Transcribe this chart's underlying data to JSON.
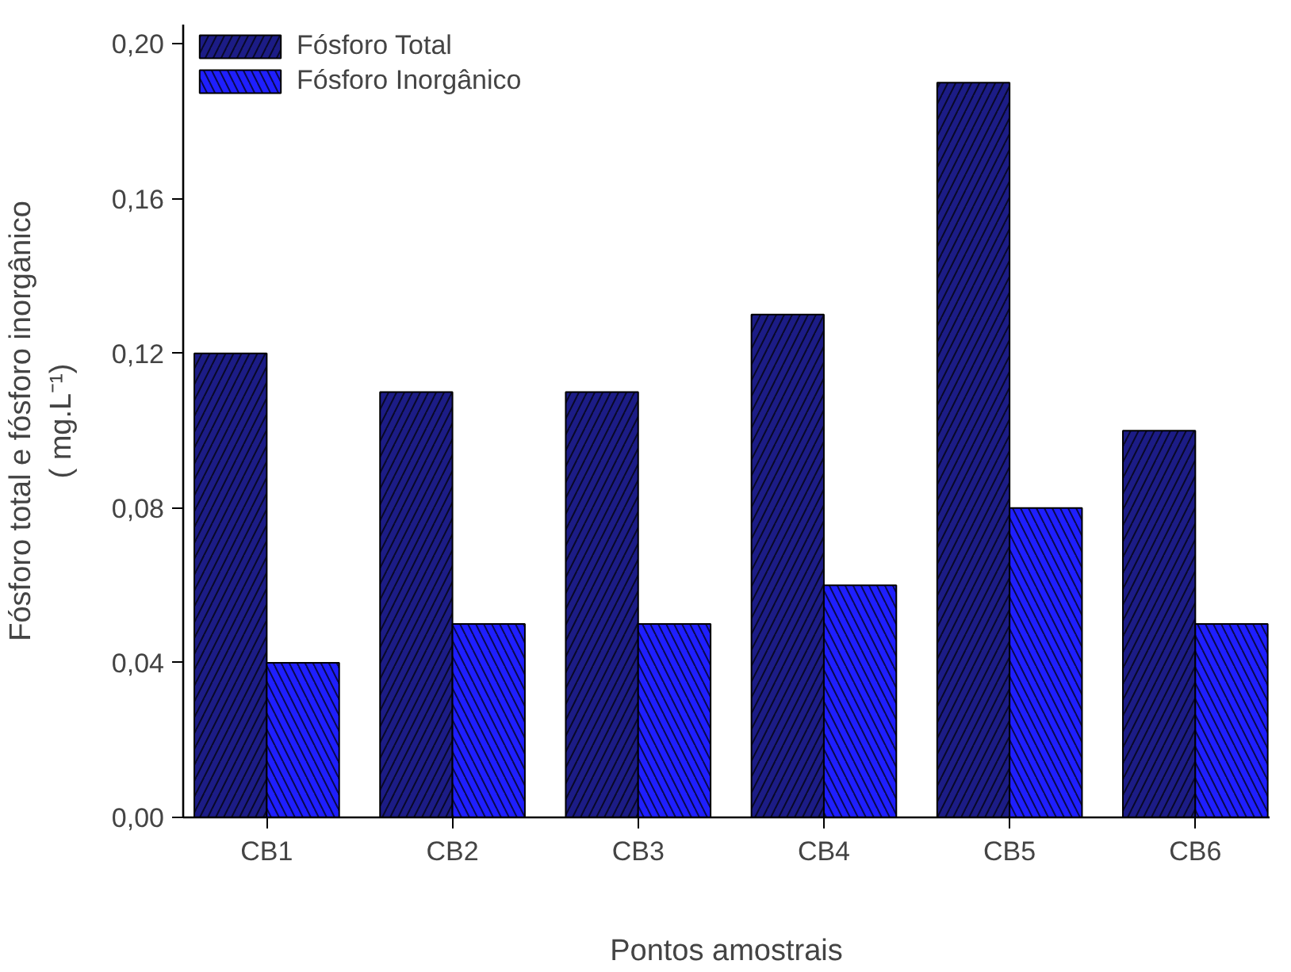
{
  "chart_data": {
    "type": "bar",
    "xlabel": "Pontos amostrais",
    "ylabel": "Fósforo total e fósforo inorgânico\n( mg.L⁻¹)",
    "categories": [
      "CB1",
      "CB2",
      "CB3",
      "CB4",
      "CB5",
      "CB6"
    ],
    "series": [
      {
        "name": "Fósforo Total",
        "color": "#1c1c86",
        "values": [
          0.12,
          0.11,
          0.11,
          0.13,
          0.19,
          0.1
        ]
      },
      {
        "name": "Fósforo Inorgânico",
        "color": "#1f1fff",
        "values": [
          0.04,
          0.05,
          0.05,
          0.06,
          0.08,
          0.05
        ]
      }
    ],
    "ylim": [
      0,
      0.205
    ],
    "yticks": [
      {
        "value": 0,
        "label": "0,00"
      },
      {
        "value": 0.04,
        "label": "0,04"
      },
      {
        "value": 0.08,
        "label": "0,08"
      },
      {
        "value": 0.12,
        "label": "0,12"
      },
      {
        "value": 0.16,
        "label": "0,16"
      },
      {
        "value": 0.2,
        "label": "0,20"
      }
    ],
    "grid": false,
    "legend": "top left"
  }
}
